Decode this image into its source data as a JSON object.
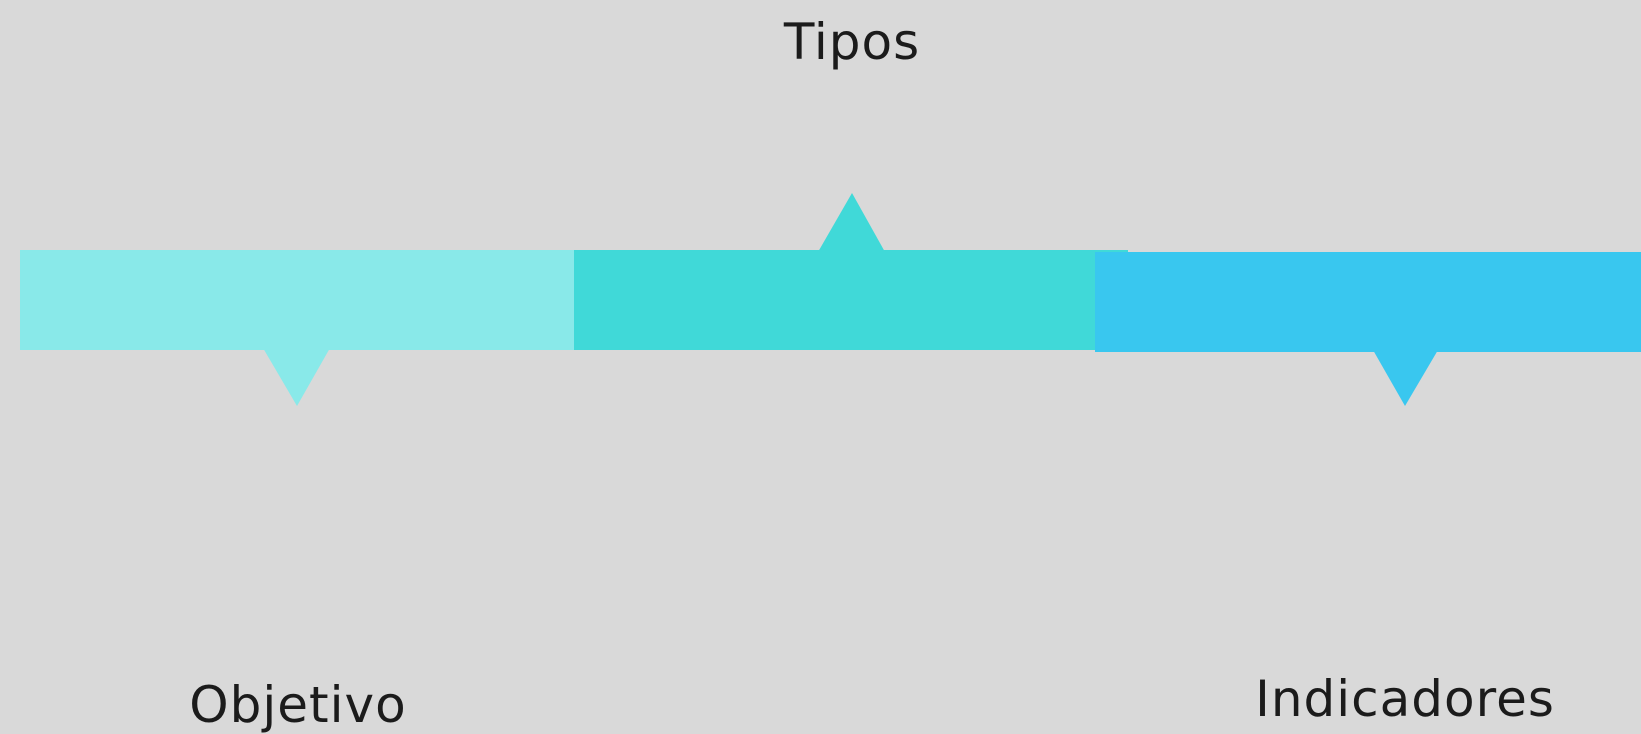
{
  "diagram": {
    "segments": [
      {
        "id": "objetivo",
        "label": "Objetivo",
        "color": "#89e9e9",
        "pointer": "down",
        "label_position": "below"
      },
      {
        "id": "tipos",
        "label": "Tipos",
        "color": "#40d9d8",
        "pointer": "up",
        "label_position": "above"
      },
      {
        "id": "indicadores",
        "label": "Indicadores",
        "color": "#39c7ef",
        "pointer": "down",
        "label_position": "below"
      }
    ]
  },
  "colors": {
    "background": "#d9d9d9",
    "text": "#1b1b1b"
  }
}
